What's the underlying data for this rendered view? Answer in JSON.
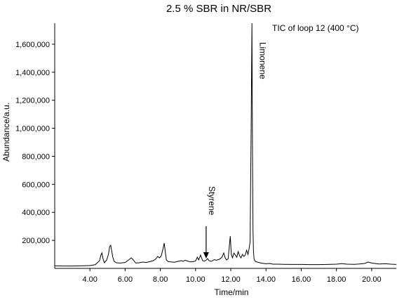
{
  "chart_data": {
    "type": "line",
    "title": "2.5 % SBR in NR/SBR",
    "xlabel": "Time/min",
    "ylabel": "Abundance/a.u.",
    "xlim": [
      2.0,
      21.4
    ],
    "ylim": [
      0,
      1750000
    ],
    "xticks": [
      "4.00",
      "6.00",
      "8.00",
      "10.00",
      "12.00",
      "14.00",
      "16.00",
      "18.00",
      "20.00"
    ],
    "yticks": [
      "200,000",
      "400,000",
      "600,000",
      "800,000",
      "1,000,000",
      "1,200,000",
      "1,400,000",
      "1,600,000"
    ],
    "grid": false,
    "line_color": "#000000",
    "series": [
      {
        "name": "TIC of loop 12 (400 °C)",
        "x": [
          2.0,
          2.5,
          3.0,
          3.5,
          4.0,
          4.3,
          4.55,
          4.62,
          4.68,
          4.74,
          4.82,
          4.95,
          5.05,
          5.12,
          5.18,
          5.23,
          5.3,
          5.38,
          5.5,
          5.7,
          6.0,
          6.2,
          6.35,
          6.45,
          6.6,
          6.8,
          7.0,
          7.2,
          7.4,
          7.6,
          7.75,
          7.85,
          7.95,
          8.05,
          8.15,
          8.22,
          8.28,
          8.34,
          8.45,
          8.6,
          8.8,
          9.0,
          9.2,
          9.3,
          9.4,
          9.55,
          9.7,
          9.85,
          10.0,
          10.1,
          10.18,
          10.28,
          10.4,
          10.5,
          10.6,
          10.68,
          10.76,
          10.9,
          11.05,
          11.2,
          11.35,
          11.5,
          11.6,
          11.68,
          11.76,
          11.85,
          11.92,
          11.97,
          12.03,
          12.1,
          12.18,
          12.26,
          12.34,
          12.42,
          12.5,
          12.58,
          12.66,
          12.74,
          12.82,
          12.9,
          12.98,
          13.04,
          13.1,
          13.16,
          13.2,
          13.23,
          13.26,
          13.29,
          13.32,
          13.36,
          13.42,
          13.5,
          13.65,
          13.8,
          14.0,
          14.2,
          14.4,
          14.7,
          15.0,
          15.5,
          16.0,
          16.5,
          17.0,
          17.5,
          18.0,
          18.3,
          18.6,
          19.0,
          19.3,
          19.6,
          19.8,
          20.0,
          20.4,
          20.8,
          21.1,
          21.4
        ],
        "values": [
          18000,
          17000,
          17000,
          18000,
          20000,
          26000,
          55000,
          95000,
          110000,
          70000,
          40000,
          60000,
          100000,
          155000,
          165000,
          130000,
          80000,
          50000,
          40000,
          38000,
          42000,
          60000,
          75000,
          62000,
          38000,
          40000,
          45000,
          42000,
          48000,
          55000,
          68000,
          85000,
          75000,
          90000,
          140000,
          180000,
          120000,
          60000,
          48000,
          46000,
          44000,
          50000,
          55000,
          50000,
          58000,
          52000,
          46000,
          48000,
          52000,
          80000,
          60000,
          95000,
          55000,
          52000,
          58000,
          70000,
          55000,
          50000,
          62000,
          58000,
          65000,
          80000,
          110000,
          75000,
          60000,
          68000,
          160000,
          230000,
          100000,
          75000,
          110000,
          95000,
          80000,
          120000,
          90000,
          75000,
          100000,
          85000,
          95000,
          130000,
          100000,
          140000,
          190000,
          1100000,
          1750000,
          900000,
          270000,
          120000,
          70000,
          55000,
          48000,
          45000,
          40000,
          36000,
          33000,
          35000,
          30000,
          30000,
          29000,
          28000,
          28000,
          27000,
          27000,
          28000,
          30000,
          34000,
          30000,
          29000,
          31000,
          35000,
          45000,
          38000,
          31000,
          33000,
          30000,
          28000
        ]
      }
    ],
    "annotations": [
      {
        "text": "TIC of loop 12 (400 °C)",
        "position": "top-right"
      },
      {
        "text": "Limonene",
        "x": 13.25,
        "orientation": "vertical"
      },
      {
        "text": "Styrene",
        "x": 10.6,
        "y": 55000,
        "arrow": "down",
        "orientation": "vertical"
      }
    ]
  }
}
